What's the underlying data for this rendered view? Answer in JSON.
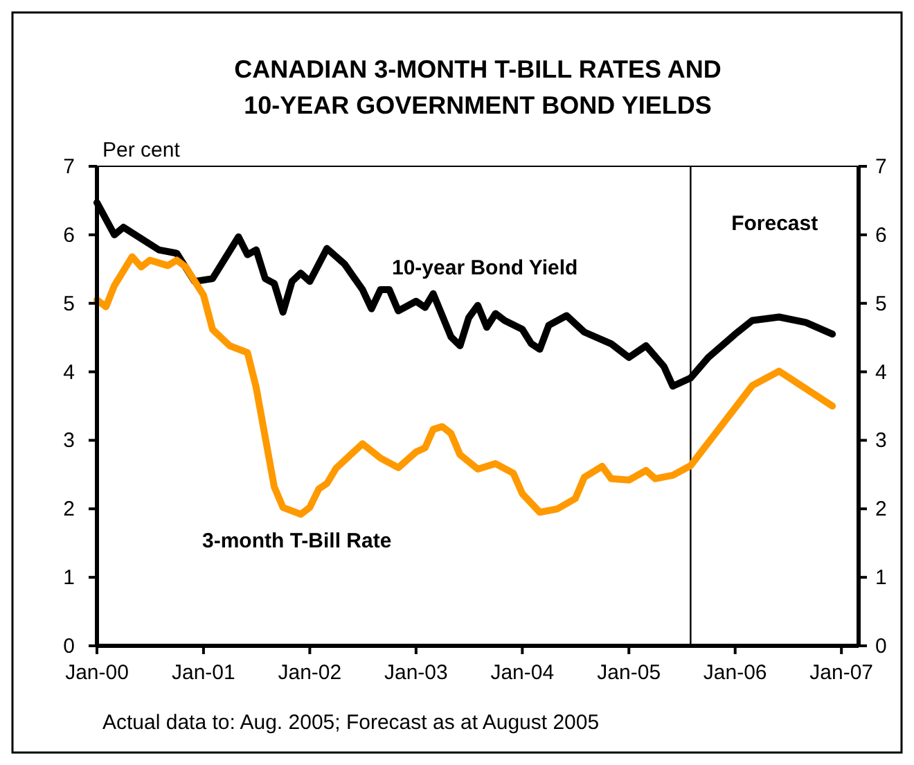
{
  "chart_data": {
    "type": "line",
    "title": "CANADIAN 3-MONTH T-BILL RATES AND\n10-YEAR GOVERNMENT BOND YIELDS",
    "ylabel": "Per cent",
    "annotations": [
      "Actual data to: Aug. 2005; Forecast as at August 2005"
    ],
    "xlim": [
      "2000-01",
      "2007-03"
    ],
    "xticks": [
      {
        "value": "2000-01",
        "label": "Jan-00"
      },
      {
        "value": "2001-01",
        "label": "Jan-01"
      },
      {
        "value": "2002-01",
        "label": "Jan-02"
      },
      {
        "value": "2003-01",
        "label": "Jan-03"
      },
      {
        "value": "2004-01",
        "label": "Jan-04"
      },
      {
        "value": "2005-01",
        "label": "Jan-05"
      },
      {
        "value": "2006-01",
        "label": "Jan-06"
      },
      {
        "value": "2007-01",
        "label": "Jan-07"
      }
    ],
    "ylim": [
      0,
      7
    ],
    "yticks": [
      0,
      1,
      2,
      3,
      4,
      5,
      6,
      7
    ],
    "y2lim": [
      0,
      7
    ],
    "y2ticks": [
      0,
      1,
      2,
      3,
      4,
      5,
      6,
      7
    ],
    "grid": false,
    "marker": "none",
    "line_style": "solid",
    "ref_lines": [
      {
        "axis": "x",
        "value": "2005-08",
        "label": "Forecast",
        "color": "#000000"
      }
    ],
    "series": [
      {
        "name": "10-year Bond Yield",
        "color": "#000000",
        "x": [
          "2000-01",
          "2000-03",
          "2000-04",
          "2000-08",
          "2000-10",
          "2000-12",
          "2001-02",
          "2001-05",
          "2001-06",
          "2001-07",
          "2001-08",
          "2001-09",
          "2001-10",
          "2001-11",
          "2001-12",
          "2002-01",
          "2002-03",
          "2002-05",
          "2002-07",
          "2002-08",
          "2002-09",
          "2002-10",
          "2002-11",
          "2003-01",
          "2003-02",
          "2003-03",
          "2003-05",
          "2003-06",
          "2003-07",
          "2003-08",
          "2003-09",
          "2003-10",
          "2003-11",
          "2004-01",
          "2004-02",
          "2004-03",
          "2004-04",
          "2004-06",
          "2004-08",
          "2004-11",
          "2005-01",
          "2005-03",
          "2005-05",
          "2005-06",
          "2005-08",
          "2005-10",
          "2006-01",
          "2006-03",
          "2006-06",
          "2006-09",
          "2006-12"
        ],
        "values": [
          6.47,
          6.0,
          6.11,
          5.78,
          5.73,
          5.32,
          5.36,
          5.97,
          5.71,
          5.78,
          5.36,
          5.29,
          4.87,
          5.32,
          5.44,
          5.32,
          5.8,
          5.57,
          5.2,
          4.92,
          5.2,
          5.2,
          4.89,
          5.03,
          4.94,
          5.14,
          4.51,
          4.38,
          4.79,
          4.97,
          4.65,
          4.85,
          4.75,
          4.62,
          4.41,
          4.33,
          4.68,
          4.82,
          4.58,
          4.41,
          4.21,
          4.38,
          4.08,
          3.79,
          3.91,
          4.21,
          4.55,
          4.75,
          4.8,
          4.72,
          4.55
        ]
      },
      {
        "name": "3-month T-Bill Rate",
        "color": "#ff9900",
        "x": [
          "2000-01",
          "2000-02",
          "2000-03",
          "2000-05",
          "2000-06",
          "2000-07",
          "2000-09",
          "2000-10",
          "2000-11",
          "2001-01",
          "2001-02",
          "2001-04",
          "2001-06",
          "2001-07",
          "2001-09",
          "2001-10",
          "2001-12",
          "2002-01",
          "2002-02",
          "2002-03",
          "2002-04",
          "2002-07",
          "2002-09",
          "2002-11",
          "2003-01",
          "2003-02",
          "2003-03",
          "2003-04",
          "2003-05",
          "2003-06",
          "2003-08",
          "2003-10",
          "2003-12",
          "2004-01",
          "2004-03",
          "2004-05",
          "2004-07",
          "2004-08",
          "2004-10",
          "2004-11",
          "2005-01",
          "2005-03",
          "2005-04",
          "2005-06",
          "2005-08",
          "2006-03",
          "2006-06",
          "2006-12"
        ],
        "values": [
          5.05,
          4.95,
          5.26,
          5.68,
          5.53,
          5.63,
          5.55,
          5.63,
          5.53,
          5.12,
          4.62,
          4.38,
          4.28,
          3.77,
          2.32,
          2.02,
          1.92,
          2.02,
          2.29,
          2.37,
          2.59,
          2.95,
          2.74,
          2.6,
          2.83,
          2.89,
          3.16,
          3.2,
          3.1,
          2.79,
          2.58,
          2.66,
          2.52,
          2.22,
          1.95,
          2.0,
          2.15,
          2.46,
          2.62,
          2.44,
          2.42,
          2.56,
          2.44,
          2.49,
          2.63,
          3.8,
          4.01,
          3.5
        ]
      }
    ]
  }
}
